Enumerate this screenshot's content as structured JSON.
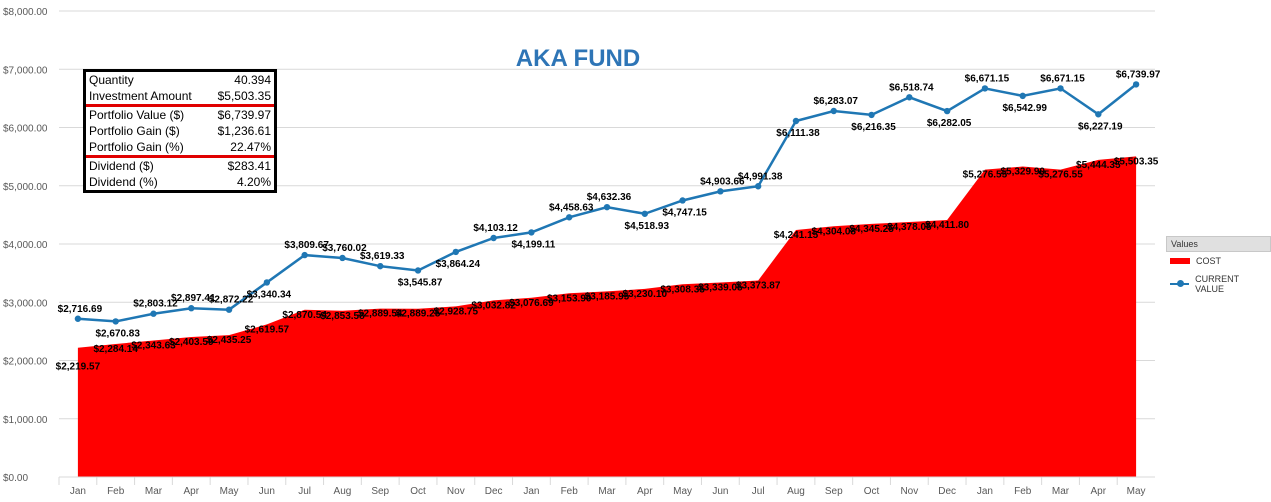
{
  "chart_data": {
    "type": "area",
    "title": "AKA FUND",
    "xlabel": "",
    "ylabel": "",
    "ylim": [
      0,
      8000
    ],
    "y_ticks": [
      "$0.00",
      "$1,000.00",
      "$2,000.00",
      "$3,000.00",
      "$4,000.00",
      "$5,000.00",
      "$6,000.00",
      "$7,000.00",
      "$8,000.00"
    ],
    "categories": [
      "Jan",
      "Feb",
      "Mar",
      "Apr",
      "May",
      "Jun",
      "Jul",
      "Aug",
      "Sep",
      "Oct",
      "Nov",
      "Dec",
      "Jan",
      "Feb",
      "Mar",
      "Apr",
      "May",
      "Jun",
      "Jul",
      "Aug",
      "Sep",
      "Oct",
      "Nov",
      "Dec",
      "Jan",
      "Feb",
      "Mar",
      "Apr",
      "May"
    ],
    "grid": true,
    "legend_position": "right",
    "legend_title": "Values",
    "series": [
      {
        "name": "COST",
        "kind": "area",
        "color": "#ff0000",
        "values": [
          2219.57,
          2284.14,
          2343.63,
          2403.59,
          2435.25,
          2619.57,
          2870.54,
          2853.58,
          2889.54,
          2889.25,
          2928.75,
          3032.82,
          3076.69,
          3153.9,
          3185.95,
          3230.1,
          3308.35,
          3339.05,
          3373.87,
          4241.15,
          4304.08,
          4345.25,
          4378.05,
          4411.8,
          5276.55,
          5329.9,
          5276.55,
          5444.35,
          5503.35
        ],
        "labels": [
          "$2,219.57",
          "$2,284.14",
          "$2,343.63",
          "$2,403.59",
          "$2,435.25",
          "$2,619.57",
          "$2,870.54",
          "$2,853.58",
          "$2,889.54",
          "$2,889.25",
          "$2,928.75",
          "$3,032.82",
          "$3,076.69",
          "$3,153.90",
          "$3,185.95",
          "$3,230.10",
          "$3,308.35",
          "$3,339.05",
          "$3,373.87",
          "$4,241.15",
          "$4,304.08",
          "$4,345.25",
          "$4,378.05",
          "$4,411.80",
          "$5,276.55",
          "$5,329.90",
          "$5,276.55",
          "$5,444.35",
          "$5,503.35"
        ]
      },
      {
        "name": "CURRENT VALUE",
        "kind": "line",
        "color": "#1f77b4",
        "values": [
          2716.69,
          2670.83,
          2803.12,
          2897.41,
          2872.22,
          3340.34,
          3809.67,
          3760.02,
          3619.33,
          3545.87,
          3864.24,
          4103.12,
          4199.11,
          4458.63,
          4632.36,
          4518.93,
          4747.15,
          4903.66,
          4991.38,
          6111.38,
          6283.07,
          6216.35,
          6518.74,
          6282.05,
          6671.15,
          6542.99,
          6671.15,
          6227.19,
          6739.97
        ],
        "labels": [
          "$2,716.69",
          "$2,670.83",
          "$2,803.12",
          "$2,897.41",
          "$2,872.22",
          "$3,340.34",
          "$3,809.67",
          "$3,760.02",
          "$3,619.33",
          "$3,545.87",
          "$3,864.24",
          "$4,103.12",
          "$4,199.11",
          "$4,458.63",
          "$4,632.36",
          "$4,518.93",
          "$4,747.15",
          "$4,903.66",
          "$4,991.38",
          "$6,111.38",
          "$6,283.07",
          "$6,216.35",
          "$6,518.74",
          "$6,282.05",
          "$6,671.15",
          "$6,542.99",
          "$6,671.15",
          "$6,227.19",
          "$6,739.97"
        ]
      }
    ]
  },
  "summary": {
    "rows": [
      {
        "label": "Quantity",
        "value": "40.394"
      },
      {
        "label": "Investment Amount",
        "value": "$5,503.35"
      },
      {
        "label": "Portfolio Value ($)",
        "value": "$6,739.97"
      },
      {
        "label": "Portfolio Gain ($)",
        "value": "$1,236.61"
      },
      {
        "label": "Portfolio Gain (%)",
        "value": "22.47%"
      },
      {
        "label": "Dividend ($)",
        "value": "$283.41"
      },
      {
        "label": "Dividend (%)",
        "value": "4.20%"
      }
    ]
  }
}
